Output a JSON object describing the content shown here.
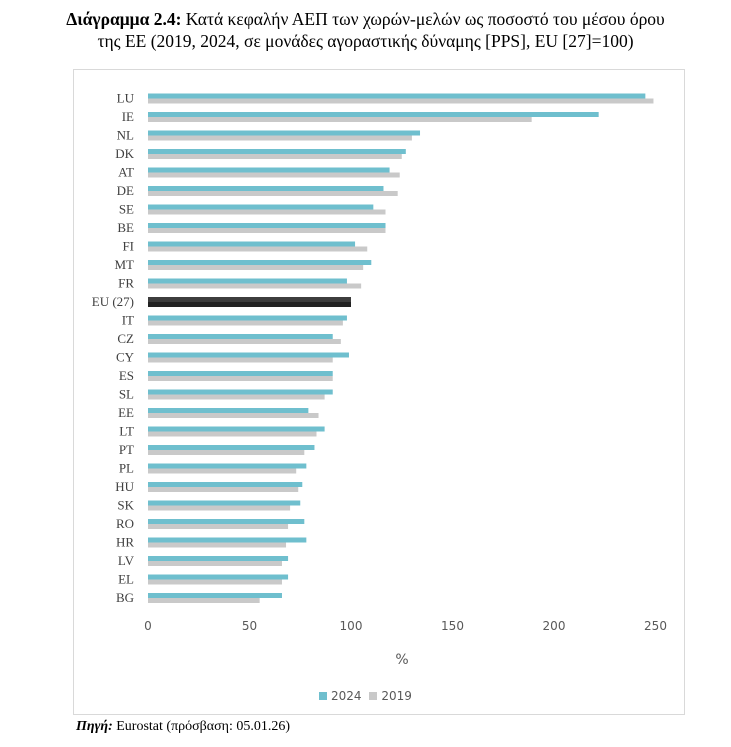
{
  "title": {
    "prefix": "Διάγραμμα 2.4:",
    "line1": "Κατά κεφαλήν ΑΕΠ των χωρών-μελών ως ποσοστό του μέσου όρου",
    "line2": "της ΕΕ (2019, 2024, σε μονάδες αγοραστικής δύναμης [PPS], EU [27]=100)"
  },
  "source": {
    "label": "Πηγή:",
    "text": "Eurostat (πρόσβαση: 05.01.26)"
  },
  "colors": {
    "series_2024": "#6fbfce",
    "series_2019": "#c9c9c9",
    "eu_2024": "#3d3d3d",
    "eu_2019": "#222222",
    "grid": "#d9d9d9"
  },
  "chart_data": {
    "type": "bar",
    "orientation": "horizontal",
    "categories": [
      "LU",
      "IE",
      "NL",
      "DK",
      "AT",
      "DE",
      "SE",
      "BE",
      "FI",
      "MT",
      "FR",
      "EU (27)",
      "IT",
      "CZ",
      "CY",
      "ES",
      "SL",
      "EE",
      "LT",
      "PT",
      "PL",
      "HU",
      "SK",
      "RO",
      "HR",
      "LV",
      "EL",
      "BG"
    ],
    "series": [
      {
        "name": "2024",
        "values": [
          245,
          222,
          134,
          127,
          119,
          116,
          111,
          117,
          102,
          110,
          98,
          100,
          98,
          91,
          99,
          91,
          91,
          79,
          87,
          82,
          78,
          76,
          75,
          77,
          78,
          69,
          69,
          66
        ]
      },
      {
        "name": "2019",
        "values": [
          249,
          189,
          130,
          125,
          124,
          123,
          117,
          117,
          108,
          106,
          105,
          100,
          96,
          95,
          91,
          91,
          87,
          84,
          83,
          77,
          73,
          74,
          70,
          69,
          68,
          66,
          66,
          55
        ]
      }
    ],
    "xlabel": "%",
    "ylabel": "",
    "xlim": [
      0,
      250
    ],
    "xticks": [
      0,
      50,
      100,
      150,
      200,
      250
    ],
    "grid": false,
    "legend_position": "bottom"
  }
}
